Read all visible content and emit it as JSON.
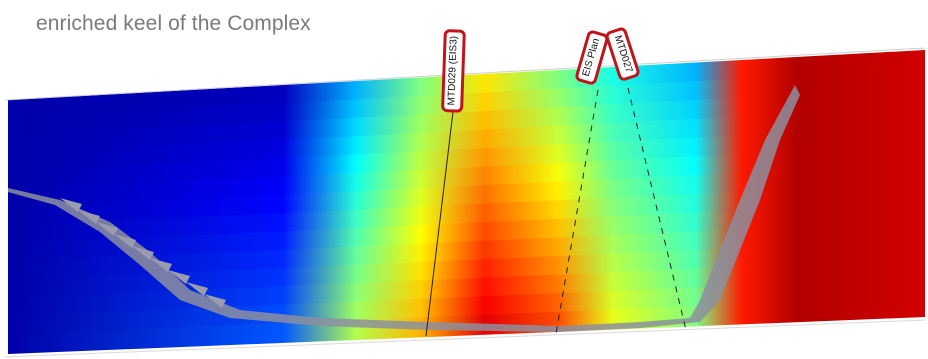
{
  "caption": {
    "line1": "enriched keel of the Complex"
  },
  "drillholes": [
    {
      "label": "MTD029 (EIS3)"
    },
    {
      "label": "EIS Plan"
    },
    {
      "label": "MTD027"
    }
  ],
  "colormap": "jet",
  "colors": {
    "low": "#00008f",
    "high": "#d21e0c",
    "tag_border": "#c0141a",
    "surface": "#8c8f9e"
  }
}
